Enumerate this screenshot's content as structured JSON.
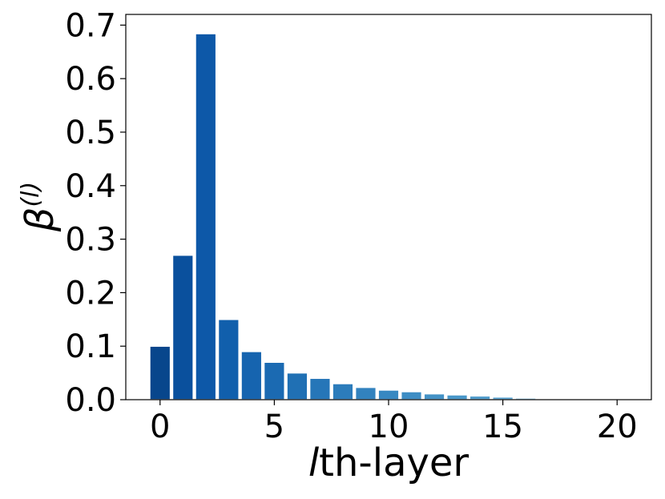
{
  "chart_data": {
    "type": "bar",
    "x": [
      0,
      1,
      2,
      3,
      4,
      5,
      6,
      7,
      8,
      9,
      10,
      11,
      12,
      13,
      14,
      15,
      16,
      17,
      18,
      19,
      20
    ],
    "values": [
      0.1,
      0.27,
      0.684,
      0.15,
      0.09,
      0.07,
      0.05,
      0.04,
      0.03,
      0.023,
      0.018,
      0.015,
      0.011,
      0.009,
      0.007,
      0.005,
      0.003,
      0.002,
      0.001,
      0.001,
      0.001
    ],
    "colors": [
      "#08468c",
      "#0a509d",
      "#0d58a8",
      "#115fac",
      "#1664af",
      "#1b6ab2",
      "#2070b4",
      "#2676b8",
      "#2c7cbb",
      "#3282be",
      "#3888c1",
      "#3e8dc4",
      "#4492c6",
      "#4997c9",
      "#4f9bcb",
      "#55a0ce",
      "#5ba4d0",
      "#61a8d2",
      "#66abd4",
      "#6baed6",
      "#70b2d8"
    ],
    "xlim": [
      -1.5,
      21.5
    ],
    "ylim": [
      0,
      0.72
    ],
    "xticks": [
      0,
      5,
      10,
      15,
      20
    ],
    "yticks": [
      {
        "value": 0,
        "label": "0.0"
      },
      0.1,
      0.2,
      0.3,
      0.4,
      0.5,
      0.6,
      0.7
    ],
    "xlabel": {
      "var": "l",
      "text": "th-layer"
    },
    "ylabel": {
      "base": "β",
      "sup": "(l)"
    }
  }
}
